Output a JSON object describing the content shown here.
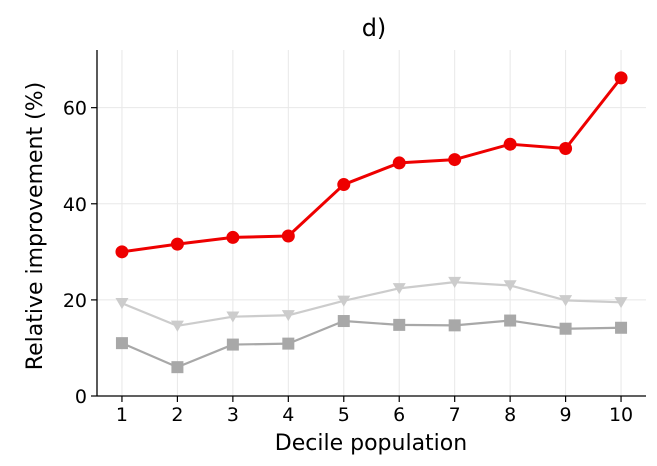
{
  "chart_data": {
    "type": "line",
    "title": "d)",
    "xlabel": "Decile population",
    "ylabel": "Relative improvement (%)",
    "x": [
      1,
      2,
      3,
      4,
      5,
      6,
      7,
      8,
      9,
      10
    ],
    "xlim": [
      0.55,
      10.45
    ],
    "ylim": [
      0,
      72
    ],
    "yticks": [
      0,
      20,
      40,
      60
    ],
    "grid": true,
    "legend": "none",
    "series": [
      {
        "marker": "circle",
        "color": "#ee0000",
        "values": [
          30.0,
          31.6,
          33.0,
          33.3,
          44.0,
          48.5,
          49.2,
          52.4,
          51.5,
          66.2
        ]
      },
      {
        "marker": "triangle-down",
        "color": "#cccccc",
        "values": [
          19.3,
          14.6,
          16.5,
          16.8,
          19.8,
          22.4,
          23.7,
          23.0,
          19.9,
          19.5
        ]
      },
      {
        "marker": "square",
        "color": "#a8a8a8",
        "values": [
          11.0,
          6.0,
          10.7,
          10.9,
          15.6,
          14.8,
          14.7,
          15.7,
          14.0,
          14.2
        ]
      }
    ]
  }
}
